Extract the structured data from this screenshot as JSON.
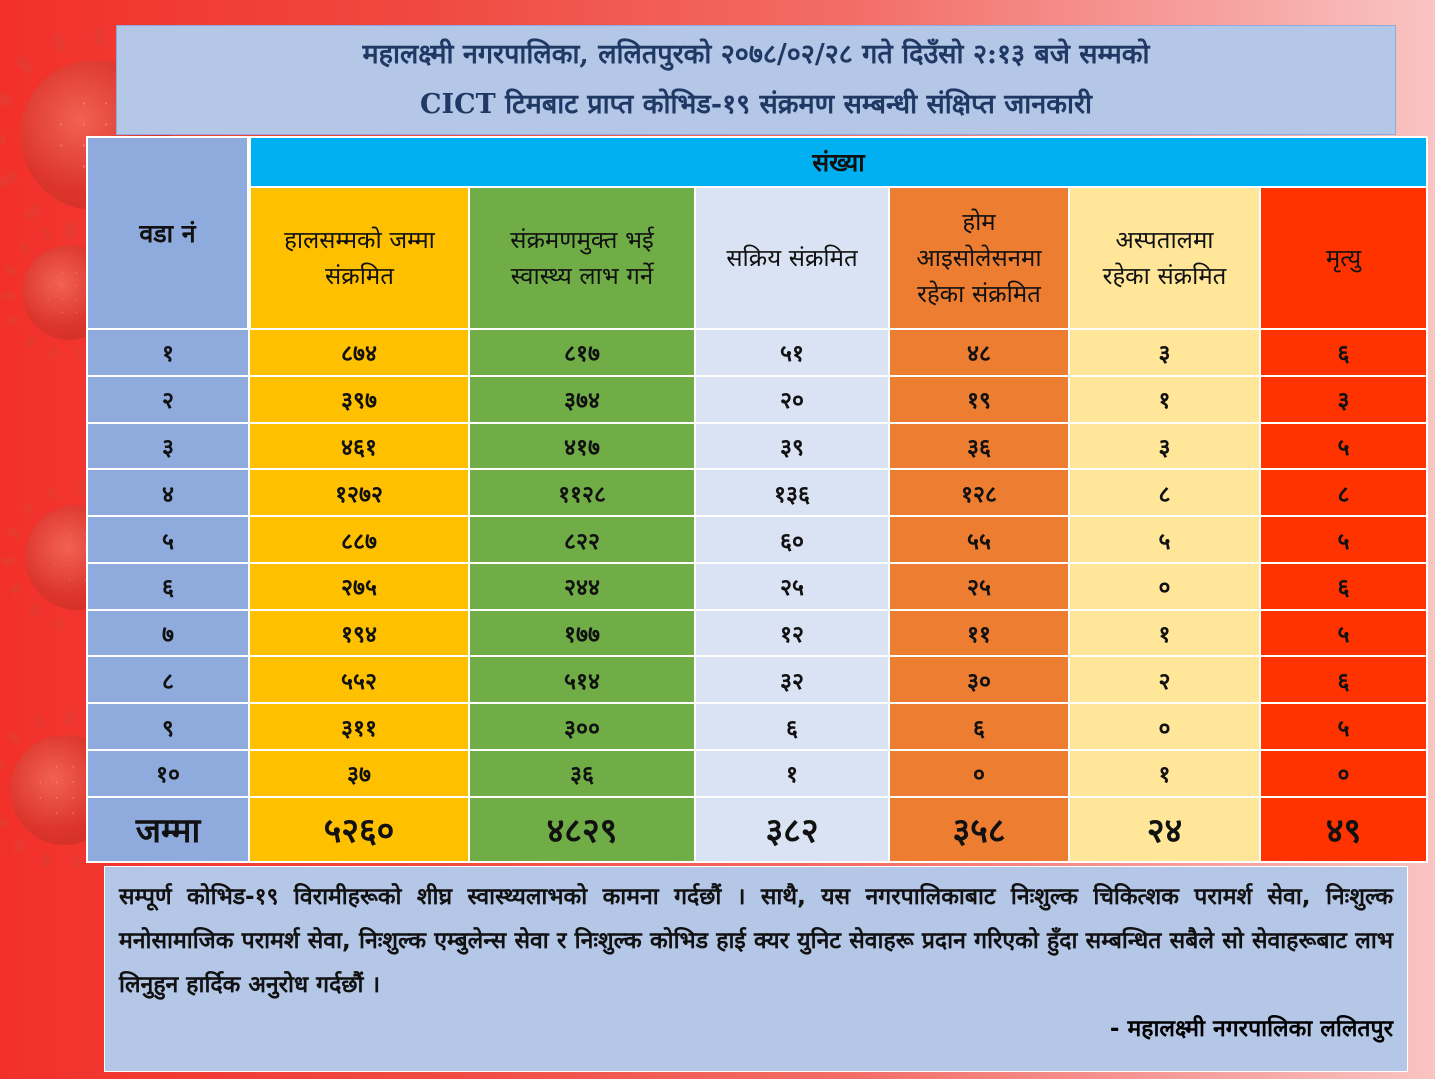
{
  "title": {
    "line1": "महालक्ष्मी नगरपालिका, ललितपुरको २०७८/०२/२८ गते दिउँसो २:१३ बजे सम्मको",
    "line2": "CICT टिमबाट प्राप्त कोभिड-१९ संक्रमण सम्बन्धी संक्षिप्त जानकारी"
  },
  "table": {
    "ward_header": "वडा नं",
    "group_header": "संख्या",
    "columns": [
      {
        "key": "total",
        "label_1": "हालसम्मको जम्मा",
        "label_2": "संक्रमित",
        "color": "#ffc000"
      },
      {
        "key": "recovered",
        "label_1": "संक्रमणमुक्त भई",
        "label_2": "स्वास्थ्य लाभ गर्ने",
        "color": "#70ad47"
      },
      {
        "key": "active",
        "label_1": "सक्रिय संक्रमित",
        "label_2": "",
        "color": "#dae3f3"
      },
      {
        "key": "home",
        "label_1": "होम",
        "label_2": "आइसोलेसनमा",
        "label_3": "रहेका संक्रमित",
        "color": "#ed7d31"
      },
      {
        "key": "hospital",
        "label_1": "अस्पतालमा",
        "label_2": "रहेका संक्रमित",
        "color": "#ffe699"
      },
      {
        "key": "death",
        "label_1": "मृत्यु",
        "label_2": "",
        "color": "#ff3300"
      }
    ],
    "rows": [
      {
        "ward": "१",
        "total": "८७४",
        "recovered": "८१७",
        "active": "५१",
        "home": "४८",
        "hospital": "३",
        "death": "६"
      },
      {
        "ward": "२",
        "total": "३९७",
        "recovered": "३७४",
        "active": "२०",
        "home": "१९",
        "hospital": "१",
        "death": "३"
      },
      {
        "ward": "३",
        "total": "४६१",
        "recovered": "४१७",
        "active": "३९",
        "home": "३६",
        "hospital": "३",
        "death": "५"
      },
      {
        "ward": "४",
        "total": "१२७२",
        "recovered": "११२८",
        "active": "१३६",
        "home": "१२८",
        "hospital": "८",
        "death": "८"
      },
      {
        "ward": "५",
        "total": "८८७",
        "recovered": "८२२",
        "active": "६०",
        "home": "५५",
        "hospital": "५",
        "death": "५"
      },
      {
        "ward": "६",
        "total": "२७५",
        "recovered": "२४४",
        "active": "२५",
        "home": "२५",
        "hospital": "०",
        "death": "६"
      },
      {
        "ward": "७",
        "total": "१९४",
        "recovered": "१७७",
        "active": "१२",
        "home": "११",
        "hospital": "१",
        "death": "५"
      },
      {
        "ward": "८",
        "total": "५५२",
        "recovered": "५१४",
        "active": "३२",
        "home": "३०",
        "hospital": "२",
        "death": "६"
      },
      {
        "ward": "९",
        "total": "३११",
        "recovered": "३००",
        "active": "६",
        "home": "६",
        "hospital": "०",
        "death": "५"
      },
      {
        "ward": "१०",
        "total": "३७",
        "recovered": "३६",
        "active": "१",
        "home": "०",
        "hospital": "१",
        "death": "०"
      }
    ],
    "sum": {
      "ward": "जम्मा",
      "total": "५२६०",
      "recovered": "४८२९",
      "active": "३८२",
      "home": "३५८",
      "hospital": "२४",
      "death": "४९"
    }
  },
  "note": {
    "text": "सम्पूर्ण कोभिड-१९ विरामीहरूको शीघ्र स्वास्थ्यलाभको कामना गर्दछौं । साथै, यस नगरपालिकाबाट निःशुल्क चिकित्शक परामर्श सेवा, निःशुल्क मनोसामाजिक परामर्श सेवा, निःशुल्क एम्बुलेन्स सेवा र निःशुल्क कोभिड हाई क्यर युनिट सेवाहरू प्रदान गरिएको हुँदा सम्बन्धित सबैले सो सेवाहरूबाट लाभ लिनुहुन हार्दिक अनुरोध गर्दछौं ।",
    "signature": "- महालक्ष्मी नगरपालिका ललितपुर"
  }
}
